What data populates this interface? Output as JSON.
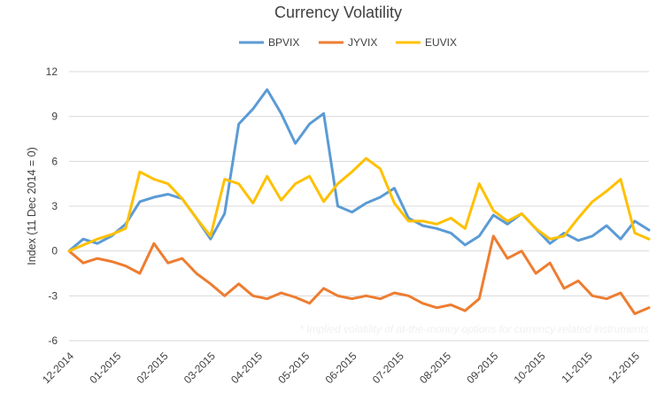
{
  "chart_data": {
    "type": "line",
    "title": "Currency Volatility",
    "ylabel": "Index (11 Dec 2014 = 0)",
    "xlabel": "",
    "ylim": [
      -6,
      12
    ],
    "yticks": [
      12,
      9,
      6,
      3,
      0,
      -3,
      -6
    ],
    "grid": true,
    "legend_position": "top-center",
    "note": "* Implied volatility of at-the-money options for currency-related instruments",
    "categories": [
      "12-2014",
      "01-2015",
      "02-2015",
      "03-2015",
      "04-2015",
      "05-2015",
      "06-2015",
      "07-2015",
      "08-2015",
      "09-2015",
      "10-2015",
      "11-2015",
      "12-2015"
    ],
    "x": [
      0,
      0.3,
      0.6,
      0.9,
      1.2,
      1.5,
      1.8,
      2.1,
      2.4,
      2.7,
      3.0,
      3.3,
      3.6,
      3.9,
      4.2,
      4.5,
      4.8,
      5.1,
      5.4,
      5.7,
      6.0,
      6.3,
      6.6,
      6.9,
      7.2,
      7.5,
      7.8,
      8.1,
      8.4,
      8.7,
      9.0,
      9.3,
      9.6,
      9.9,
      10.2,
      10.5,
      10.8,
      11.1,
      11.4,
      11.7,
      12.0,
      12.3
    ],
    "series": [
      {
        "name": "BPVIX",
        "color": "#5b9bd5",
        "values": [
          0,
          0.8,
          0.5,
          1.0,
          1.8,
          3.3,
          3.6,
          3.8,
          3.5,
          2.2,
          0.8,
          2.5,
          8.5,
          9.5,
          10.8,
          9.2,
          7.2,
          8.5,
          9.2,
          3.0,
          2.6,
          3.2,
          3.6,
          4.2,
          2.2,
          1.7,
          1.5,
          1.2,
          0.4,
          1.0,
          2.4,
          1.8,
          2.5,
          1.5,
          0.5,
          1.2,
          0.7,
          1.0,
          1.7,
          0.8,
          2.0,
          1.4
        ]
      },
      {
        "name": "JYVIX",
        "color": "#ed7d31",
        "values": [
          0,
          -0.8,
          -0.5,
          -0.7,
          -1.0,
          -1.5,
          0.5,
          -0.8,
          -0.5,
          -1.5,
          -2.2,
          -3.0,
          -2.2,
          -3.0,
          -3.2,
          -2.8,
          -3.1,
          -3.5,
          -2.5,
          -3.0,
          -3.2,
          -3.0,
          -3.2,
          -2.8,
          -3.0,
          -3.5,
          -3.8,
          -3.6,
          -4.0,
          -3.2,
          1.0,
          -0.5,
          0.0,
          -1.5,
          -0.8,
          -2.5,
          -2.0,
          -3.0,
          -3.2,
          -2.8,
          -4.2,
          -3.8
        ]
      },
      {
        "name": "EUVIX",
        "color": "#ffc000",
        "values": [
          0,
          0.4,
          0.8,
          1.1,
          1.5,
          5.3,
          4.8,
          4.5,
          3.5,
          2.2,
          1.0,
          4.8,
          4.5,
          3.2,
          5.0,
          3.4,
          4.5,
          5.0,
          3.3,
          4.5,
          5.3,
          6.2,
          5.5,
          3.2,
          2.0,
          2.0,
          1.8,
          2.2,
          1.5,
          4.5,
          2.7,
          2.0,
          2.5,
          1.5,
          0.8,
          1.0,
          2.2,
          3.3,
          4.0,
          4.8,
          1.2,
          0.8
        ]
      }
    ]
  }
}
